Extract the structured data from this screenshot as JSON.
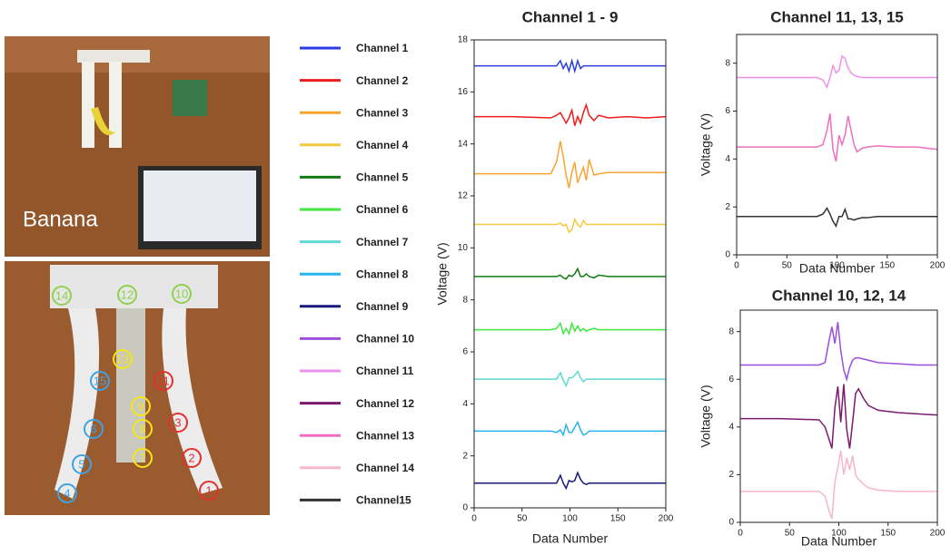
{
  "photo": {
    "label": "Banana",
    "markers": [
      {
        "label": "14",
        "color": "#8fd14f"
      },
      {
        "label": "12",
        "color": "#8fd14f"
      },
      {
        "label": "10",
        "color": "#8fd14f"
      },
      {
        "label": "13",
        "color": "#f5e614"
      },
      {
        "label": "15",
        "color": "#3ba3e8"
      },
      {
        "label": "11",
        "color": "#e53030"
      },
      {
        "label": "9",
        "color": "#f5e614"
      },
      {
        "label": "8",
        "color": "#f5e614"
      },
      {
        "label": "7",
        "color": "#f5e614"
      },
      {
        "label": "3",
        "color": "#e53030"
      },
      {
        "label": "6",
        "color": "#3ba3e8"
      },
      {
        "label": "2",
        "color": "#e53030"
      },
      {
        "label": "5",
        "color": "#3ba3e8"
      },
      {
        "label": "1",
        "color": "#e53030"
      },
      {
        "label": "4",
        "color": "#3ba3e8"
      }
    ]
  },
  "chart_data": [
    {
      "type": "line",
      "title": "Channel 1 - 9",
      "x_label": "Data Number",
      "y_label": "Voltage (V)",
      "x": [
        0,
        40,
        80,
        86,
        90,
        93,
        96,
        99,
        102,
        105,
        108,
        111,
        114,
        117,
        120,
        125,
        130,
        140,
        160,
        180,
        200
      ],
      "xlim": [
        0,
        200
      ],
      "xticks": [
        0,
        50,
        100,
        150,
        200
      ],
      "ylim": [
        0,
        18
      ],
      "yticks": [
        0,
        2,
        4,
        6,
        8,
        10,
        12,
        14,
        16,
        18
      ],
      "series": [
        {
          "name": "Channel 1",
          "color": "#2b3de0",
          "values": [
            17,
            17,
            17,
            17,
            17.2,
            16.9,
            17.1,
            16.8,
            17.2,
            16.8,
            17.2,
            16.9,
            17,
            17,
            17,
            17,
            17,
            17,
            17,
            17,
            17
          ]
        },
        {
          "name": "Channel 2",
          "color": "#ee1c1c",
          "values": [
            15.05,
            15.05,
            15,
            15.1,
            15.2,
            15,
            14.8,
            15,
            15.3,
            14.7,
            15.05,
            14.8,
            15.2,
            15.5,
            15.1,
            14.9,
            15.1,
            15,
            15.05,
            15,
            15.05
          ]
        },
        {
          "name": "Channel 3",
          "color": "#f7a531",
          "values": [
            12.85,
            12.85,
            12.85,
            13.3,
            14.1,
            13.5,
            12.8,
            12.3,
            12.9,
            13.3,
            12.5,
            12.8,
            13.1,
            12.6,
            13.4,
            12.8,
            12.85,
            12.9,
            12.9,
            12.9,
            12.9
          ]
        },
        {
          "name": "Channel 4",
          "color": "#f5c73b",
          "values": [
            10.9,
            10.9,
            10.9,
            10.9,
            10.95,
            10.85,
            10.9,
            10.6,
            10.7,
            11.1,
            10.9,
            10.8,
            11.05,
            10.9,
            10.9,
            10.9,
            10.9,
            10.9,
            10.9,
            10.9,
            10.9
          ]
        },
        {
          "name": "Channel 5",
          "color": "#137a13",
          "values": [
            8.9,
            8.9,
            8.9,
            8.9,
            8.95,
            8.85,
            8.8,
            8.95,
            8.9,
            9.0,
            9.2,
            8.9,
            8.9,
            9.0,
            8.9,
            8.85,
            8.95,
            8.9,
            8.9,
            8.9,
            8.9
          ]
        },
        {
          "name": "Channel 6",
          "color": "#3fe83f",
          "values": [
            6.85,
            6.85,
            6.85,
            6.9,
            7.1,
            6.7,
            6.9,
            6.7,
            7.1,
            6.8,
            7.0,
            6.8,
            6.9,
            6.8,
            6.85,
            6.9,
            6.85,
            6.85,
            6.85,
            6.85,
            6.85
          ]
        },
        {
          "name": "Channel 7",
          "color": "#5fd9d4",
          "values": [
            4.95,
            4.95,
            4.95,
            4.95,
            5.2,
            4.9,
            4.7,
            5.0,
            5.0,
            5.1,
            5.25,
            5.0,
            4.85,
            4.95,
            4.95,
            4.95,
            4.95,
            4.95,
            4.95,
            4.95,
            4.95
          ]
        },
        {
          "name": "Channel 8",
          "color": "#27b4ee",
          "values": [
            2.95,
            2.95,
            2.95,
            2.9,
            3.0,
            2.8,
            3.2,
            2.9,
            2.9,
            3.1,
            3.3,
            3.0,
            2.8,
            2.85,
            2.95,
            2.95,
            2.95,
            2.95,
            2.95,
            2.95,
            2.95
          ]
        },
        {
          "name": "Channel 9",
          "color": "#171a7a",
          "values": [
            0.95,
            0.95,
            0.95,
            0.95,
            1.25,
            0.95,
            0.75,
            1.05,
            1.0,
            1.05,
            1.35,
            1.1,
            0.95,
            0.9,
            0.95,
            0.95,
            0.95,
            0.95,
            0.95,
            0.95,
            0.95
          ]
        }
      ]
    },
    {
      "type": "line",
      "title": "Channel 11, 13, 15",
      "x_label": "Data Number",
      "y_label": "Voltage (V)",
      "x": [
        0,
        40,
        80,
        86,
        90,
        93,
        96,
        99,
        102,
        105,
        108,
        111,
        114,
        117,
        120,
        125,
        130,
        140,
        160,
        180,
        200
      ],
      "xlim": [
        0,
        200
      ],
      "xticks": [
        0,
        50,
        100,
        150,
        200
      ],
      "ylim": [
        0,
        9.2
      ],
      "yticks": [
        0,
        2,
        4,
        6,
        8
      ],
      "series": [
        {
          "name": "Channel 11",
          "color": "#ee90ee",
          "values": [
            7.4,
            7.4,
            7.4,
            7.3,
            7.0,
            7.4,
            7.9,
            7.6,
            7.7,
            8.3,
            8.2,
            7.8,
            7.6,
            7.5,
            7.45,
            7.4,
            7.4,
            7.4,
            7.4,
            7.4,
            7.4
          ]
        },
        {
          "name": "Channel 13",
          "color": "#f06ec0",
          "values": [
            4.5,
            4.5,
            4.5,
            4.6,
            5.2,
            5.9,
            4.4,
            3.9,
            5.0,
            4.6,
            5.0,
            5.8,
            5.2,
            4.6,
            4.3,
            4.45,
            4.5,
            4.55,
            4.5,
            4.5,
            4.4
          ]
        },
        {
          "name": "Channel15",
          "color": "#333333",
          "values": [
            1.6,
            1.6,
            1.6,
            1.7,
            1.95,
            1.7,
            1.4,
            1.2,
            1.6,
            1.6,
            1.9,
            1.5,
            1.5,
            1.45,
            1.5,
            1.55,
            1.55,
            1.6,
            1.6,
            1.6,
            1.6
          ]
        }
      ]
    },
    {
      "type": "line",
      "title": "Channel 10, 12, 14",
      "x_label": "Data Number",
      "y_label": "Voltage (V)",
      "x": [
        0,
        40,
        80,
        86,
        90,
        93,
        96,
        99,
        102,
        105,
        108,
        111,
        114,
        117,
        120,
        125,
        130,
        140,
        160,
        180,
        200
      ],
      "xlim": [
        0,
        200
      ],
      "xticks": [
        0,
        50,
        100,
        150,
        200
      ],
      "ylim": [
        0,
        8.9
      ],
      "yticks": [
        0,
        2,
        4,
        6,
        8
      ],
      "series": [
        {
          "name": "Channel 10",
          "color": "#9b4fe0",
          "values": [
            6.6,
            6.6,
            6.6,
            6.7,
            7.6,
            8.2,
            7.5,
            8.4,
            7.2,
            6.4,
            6.0,
            6.5,
            6.8,
            6.9,
            6.9,
            6.85,
            6.8,
            6.7,
            6.65,
            6.6,
            6.6
          ]
        },
        {
          "name": "Channel 12",
          "color": "#7a1a6e",
          "values": [
            4.35,
            4.35,
            4.3,
            4.0,
            3.5,
            3.1,
            4.8,
            5.7,
            4.2,
            5.8,
            3.9,
            3.1,
            4.2,
            5.4,
            5.6,
            5.2,
            4.9,
            4.7,
            4.6,
            4.55,
            4.5
          ]
        },
        {
          "name": "Channel 14",
          "color": "#f7b6cf",
          "values": [
            1.3,
            1.3,
            1.3,
            1.1,
            0.5,
            0.15,
            1.7,
            2.3,
            3.0,
            2.0,
            2.7,
            2.2,
            2.8,
            2.0,
            1.8,
            1.6,
            1.45,
            1.35,
            1.3,
            1.3,
            1.3
          ]
        }
      ]
    }
  ]
}
